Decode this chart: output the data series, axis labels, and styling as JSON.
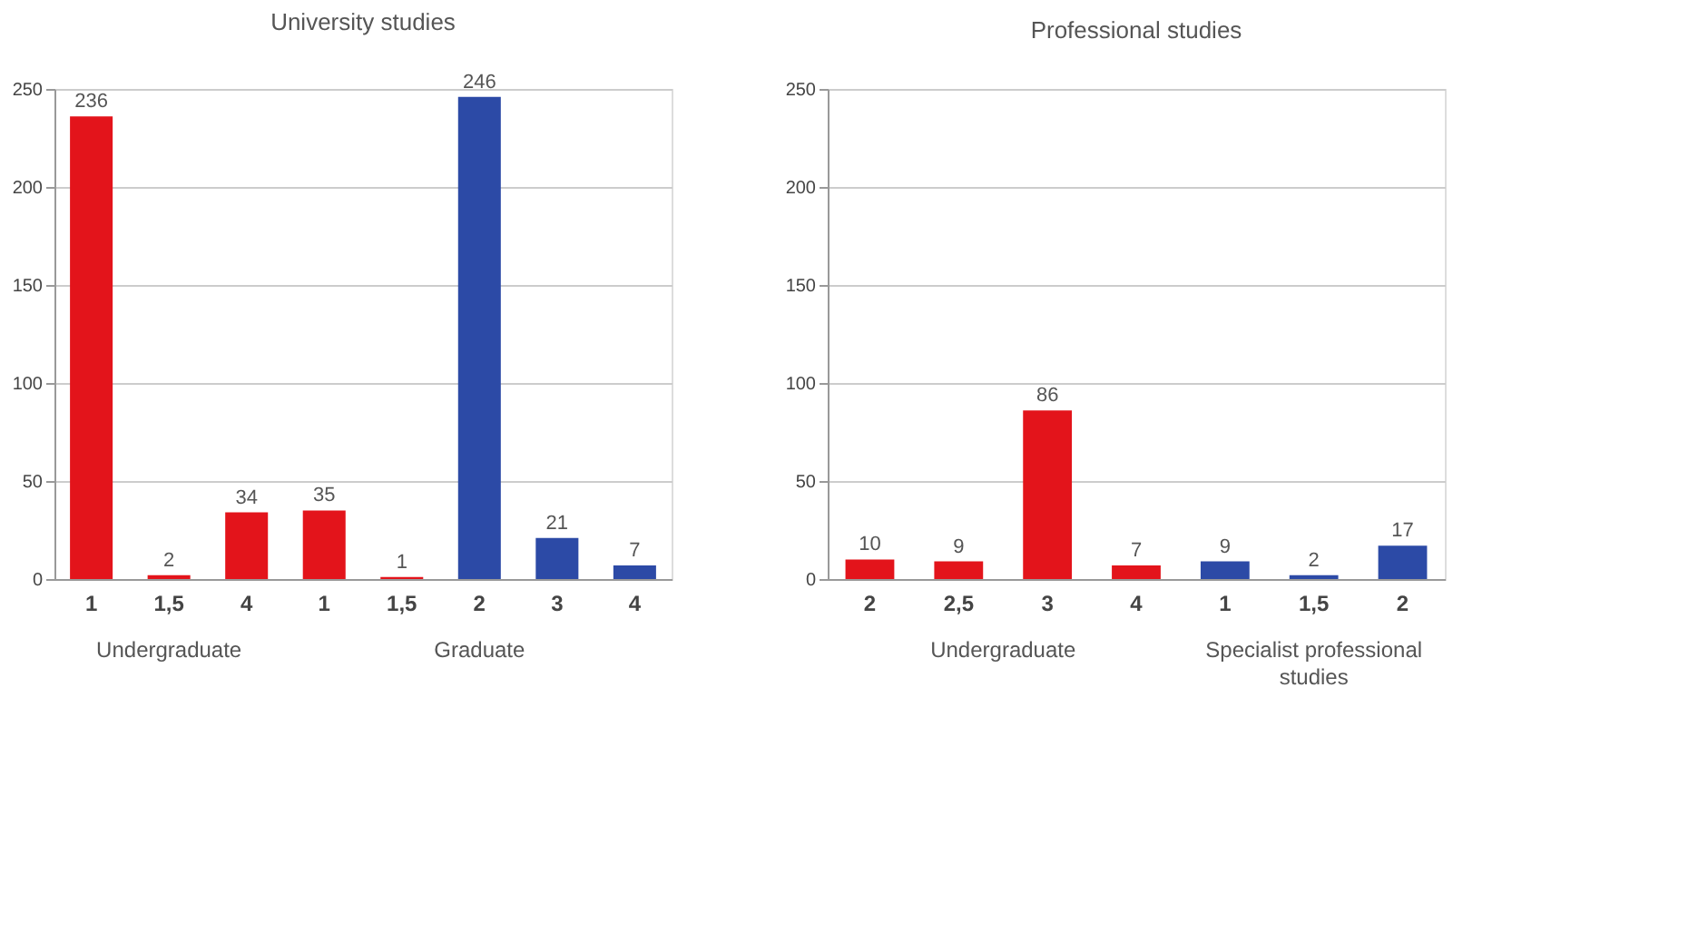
{
  "chart_data": [
    {
      "type": "bar",
      "title": "University studies",
      "categories": [
        "1",
        "1,5",
        "4",
        "1",
        "1,5",
        "2",
        "3",
        "4"
      ],
      "series": [
        {
          "name": "Undergraduate",
          "color": "#e3141b",
          "values": [
            236,
            2,
            34,
            null,
            null,
            null,
            null,
            null
          ]
        },
        {
          "name": "Graduate",
          "colors": [
            null,
            null,
            null,
            "#e3141b",
            "#e3141b",
            "#2c4aa6",
            "#2c4aa6",
            "#2c4aa6"
          ],
          "values": [
            null,
            null,
            null,
            35,
            1,
            246,
            21,
            7
          ]
        }
      ],
      "ylim": [
        0,
        250
      ],
      "yticks": [
        0,
        50,
        100,
        150,
        200,
        250
      ],
      "grid": "y",
      "data_labels": true
    },
    {
      "type": "bar",
      "title": "Professional studies",
      "categories": [
        "2",
        "2,5",
        "3",
        "4",
        "1",
        "1,5",
        "2"
      ],
      "series": [
        {
          "name": "Undergraduate",
          "color": "#e3141b",
          "values": [
            10,
            9,
            86,
            7,
            null,
            null,
            null
          ]
        },
        {
          "name": "Specialist professional studies",
          "color": "#2c4aa6",
          "values": [
            null,
            null,
            null,
            null,
            9,
            2,
            17
          ]
        }
      ],
      "ylim": [
        0,
        250
      ],
      "yticks": [
        0,
        50,
        100,
        150,
        200,
        250
      ],
      "grid": "y",
      "data_labels": true
    }
  ]
}
